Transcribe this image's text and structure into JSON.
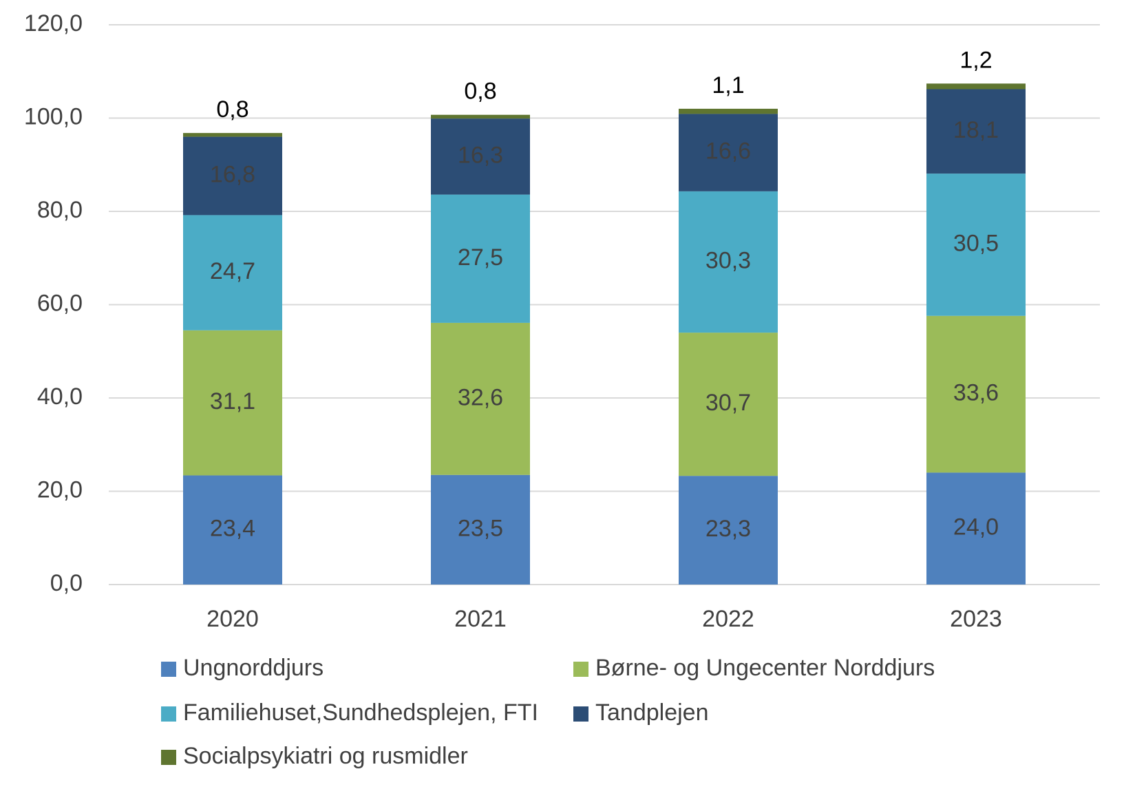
{
  "chart_data": {
    "type": "stacked_bar",
    "categories": [
      "2020",
      "2021",
      "2022",
      "2023"
    ],
    "series": [
      {
        "name": "Ungnorddjurs",
        "color": "#4f81bd",
        "values": [
          23.4,
          23.5,
          23.3,
          24.0
        ],
        "value_labels": [
          "23,4",
          "23,5",
          "23,3",
          "24,0"
        ]
      },
      {
        "name": "Børne- og Ungecenter Norddjurs",
        "color": "#9bbb59",
        "values": [
          31.1,
          32.6,
          30.7,
          33.6
        ],
        "value_labels": [
          "31,1",
          "32,6",
          "30,7",
          "33,6"
        ]
      },
      {
        "name": "Familiehuset,Sundhedsplejen, FTI",
        "color": "#4bacc6",
        "values": [
          24.7,
          27.5,
          30.3,
          30.5
        ],
        "value_labels": [
          "24,7",
          "27,5",
          "30,3",
          "30,5"
        ]
      },
      {
        "name": "Tandplejen",
        "color": "#2c4d75",
        "values": [
          16.8,
          16.3,
          16.6,
          18.1
        ],
        "value_labels": [
          "16,8",
          "16,3",
          "16,6",
          "18,1"
        ]
      },
      {
        "name": "Socialpsykiatri og rusmidler",
        "color": "#5f7530",
        "values": [
          0.8,
          0.8,
          1.1,
          1.2
        ],
        "value_labels": [
          "0,8",
          "0,8",
          "1,1",
          "1,2"
        ]
      }
    ],
    "ylim": [
      0,
      120
    ],
    "yticks": [
      {
        "value": 0,
        "label": "0,0"
      },
      {
        "value": 20,
        "label": "20,0"
      },
      {
        "value": 40,
        "label": "40,0"
      },
      {
        "value": 60,
        "label": "60,0"
      },
      {
        "value": 80,
        "label": "80,0"
      },
      {
        "value": 100,
        "label": "100,0"
      },
      {
        "value": 120,
        "label": "120,0"
      }
    ],
    "grid": true,
    "legend": "bottom"
  }
}
